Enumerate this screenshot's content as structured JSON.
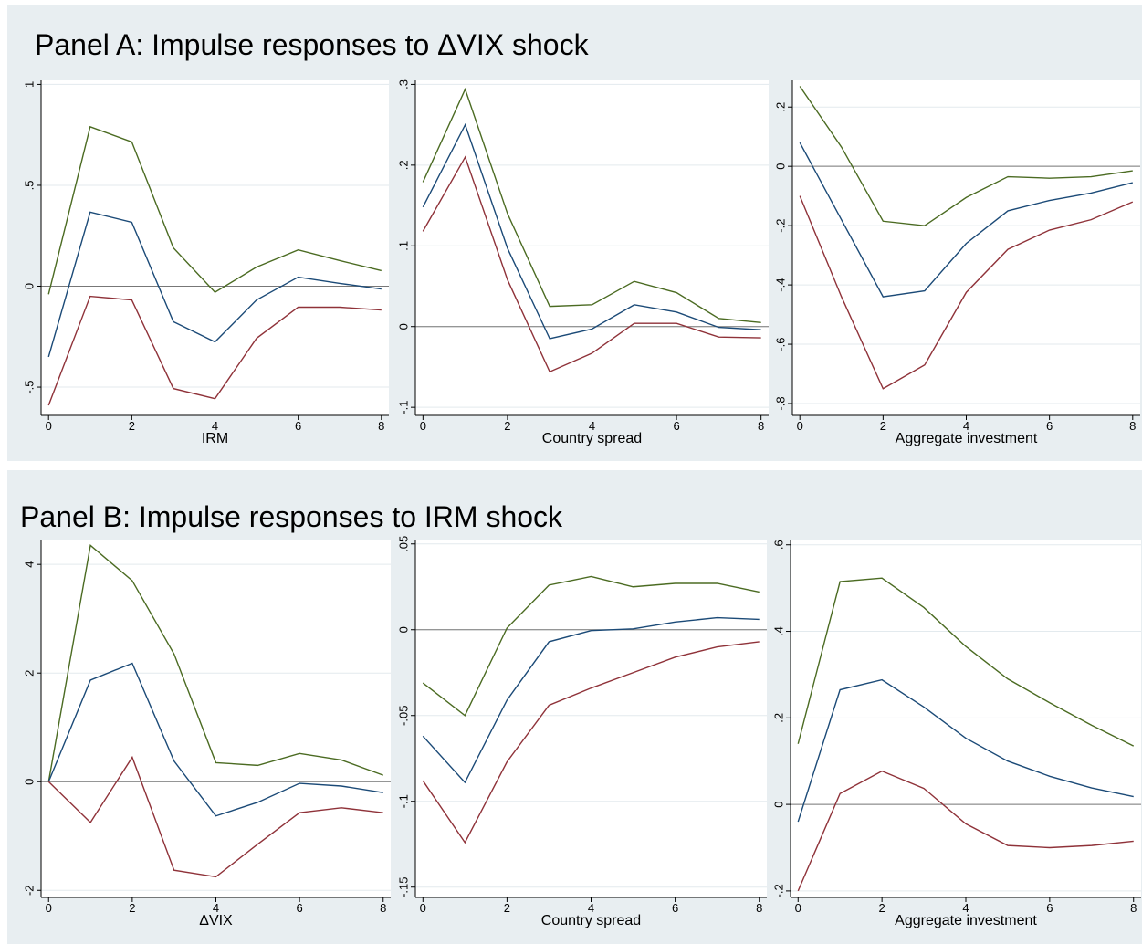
{
  "panels": [
    {
      "title": "Panel A: Impulse responses to ΔVIX shock",
      "chart_data": [
        {
          "type": "line",
          "xlabel": "IRM",
          "x": [
            0,
            1,
            2,
            3,
            4,
            5,
            6,
            7,
            8
          ],
          "xlim": [
            -0.18,
            8.18
          ],
          "xticks": [
            0,
            2,
            4,
            6,
            8
          ],
          "ylim": [
            -0.64,
            1.02
          ],
          "yticks": [
            {
              "value": -0.5,
              "label": "-.5"
            },
            0,
            {
              "value": 0.5,
              "label": ".5"
            },
            1
          ],
          "grid": true,
          "yline": 0,
          "series": [
            {
              "color": "#4b6b22",
              "values": [
                -0.04,
                0.79,
                0.715,
                0.19,
                -0.03,
                0.095,
                0.18,
                0.127,
                0.077
              ]
            },
            {
              "color": "#1b4a77",
              "values": [
                -0.35,
                0.367,
                0.317,
                -0.176,
                -0.276,
                -0.068,
                0.045,
                0.014,
                -0.014
              ]
            },
            {
              "color": "#8f3239",
              "values": [
                -0.59,
                -0.05,
                -0.068,
                -0.507,
                -0.557,
                -0.258,
                -0.104,
                -0.104,
                -0.118
              ]
            }
          ]
        },
        {
          "type": "line",
          "xlabel": "Country spread",
          "x": [
            0,
            1,
            2,
            3,
            4,
            5,
            6,
            7,
            8
          ],
          "xlim": [
            -0.18,
            8.18
          ],
          "xticks": [
            0,
            2,
            4,
            6,
            8
          ],
          "ylim": [
            -0.11,
            0.305
          ],
          "yticks": [
            {
              "value": -0.1,
              "label": "-.1"
            },
            0,
            {
              "value": 0.1,
              "label": ".1"
            },
            {
              "value": 0.2,
              "label": ".2"
            },
            {
              "value": 0.3,
              "label": ".3"
            }
          ],
          "grid": true,
          "yline": 0,
          "series": [
            {
              "color": "#4b6b22",
              "values": [
                0.179,
                0.294,
                0.14,
                0.025,
                0.027,
                0.056,
                0.042,
                0.01,
                0.005
              ]
            },
            {
              "color": "#1b4a77",
              "values": [
                0.148,
                0.25,
                0.097,
                -0.015,
                -0.003,
                0.027,
                0.018,
                -0.001,
                -0.004
              ]
            },
            {
              "color": "#8f3239",
              "values": [
                0.118,
                0.21,
                0.058,
                -0.056,
                -0.033,
                0.004,
                0.004,
                -0.013,
                -0.014
              ]
            }
          ]
        },
        {
          "type": "line",
          "xlabel": "Aggregate investment",
          "x": [
            0,
            1,
            2,
            3,
            4,
            5,
            6,
            7,
            8
          ],
          "xlim": [
            -0.18,
            8.18
          ],
          "xticks": [
            0,
            2,
            4,
            6,
            8
          ],
          "ylim": [
            -0.84,
            0.29
          ],
          "yticks": [
            {
              "value": -0.8,
              "label": "-.8"
            },
            {
              "value": -0.6,
              "label": "-.6"
            },
            {
              "value": -0.4,
              "label": "-.4"
            },
            {
              "value": -0.2,
              "label": "-.2"
            },
            0,
            {
              "value": 0.2,
              "label": ".2"
            }
          ],
          "grid": true,
          "yline": 0,
          "series": [
            {
              "color": "#4b6b22",
              "values": [
                0.27,
                0.065,
                -0.185,
                -0.2,
                -0.105,
                -0.035,
                -0.04,
                -0.035,
                -0.015
              ]
            },
            {
              "color": "#1b4a77",
              "values": [
                0.08,
                -0.18,
                -0.44,
                -0.42,
                -0.26,
                -0.15,
                -0.115,
                -0.09,
                -0.055
              ]
            },
            {
              "color": "#8f3239",
              "values": [
                -0.1,
                -0.44,
                -0.75,
                -0.67,
                -0.425,
                -0.28,
                -0.215,
                -0.18,
                -0.12
              ]
            }
          ]
        }
      ]
    },
    {
      "title": "Panel B: Impulse responses to IRM shock",
      "chart_data": [
        {
          "type": "line",
          "xlabel": "ΔVIX",
          "x": [
            0,
            1,
            2,
            3,
            4,
            5,
            6,
            7,
            8
          ],
          "xlim": [
            -0.18,
            8.18
          ],
          "xticks": [
            0,
            2,
            4,
            6,
            8
          ],
          "ylim": [
            -2.13,
            4.44
          ],
          "yticks": [
            -2,
            0,
            2,
            4
          ],
          "grid": true,
          "yline": 0,
          "series": [
            {
              "color": "#4b6b22",
              "values": [
                0,
                4.35,
                3.7,
                2.35,
                0.35,
                0.3,
                0.52,
                0.4,
                0.12
              ]
            },
            {
              "color": "#1b4a77",
              "values": [
                0,
                1.87,
                2.18,
                0.38,
                -0.63,
                -0.38,
                -0.03,
                -0.08,
                -0.2
              ]
            },
            {
              "color": "#8f3239",
              "values": [
                0,
                -0.75,
                0.45,
                -1.63,
                -1.75,
                -1.15,
                -0.57,
                -0.48,
                -0.57
              ]
            }
          ]
        },
        {
          "type": "line",
          "xlabel": "Country spread",
          "x": [
            0,
            1,
            2,
            3,
            4,
            5,
            6,
            7,
            8
          ],
          "xlim": [
            -0.18,
            8.18
          ],
          "xticks": [
            0,
            2,
            4,
            6,
            8
          ],
          "ylim": [
            -0.156,
            0.052
          ],
          "yticks": [
            {
              "value": -0.15,
              "label": "-.15"
            },
            {
              "value": -0.1,
              "label": "-.1"
            },
            {
              "value": -0.05,
              "label": "-.05"
            },
            0,
            {
              "value": 0.05,
              "label": ".05"
            }
          ],
          "grid": true,
          "yline": 0,
          "series": [
            {
              "color": "#4b6b22",
              "values": [
                -0.031,
                -0.05,
                0.001,
                0.026,
                0.031,
                0.025,
                0.027,
                0.027,
                0.022
              ]
            },
            {
              "color": "#1b4a77",
              "values": [
                -0.062,
                -0.089,
                -0.041,
                -0.007,
                -0.0005,
                0.0005,
                0.0045,
                0.007,
                0.006
              ]
            },
            {
              "color": "#8f3239",
              "values": [
                -0.088,
                -0.124,
                -0.077,
                -0.044,
                -0.034,
                -0.025,
                -0.016,
                -0.01,
                -0.007
              ]
            }
          ]
        },
        {
          "type": "line",
          "xlabel": "Aggregate investment",
          "x": [
            0,
            1,
            2,
            3,
            4,
            5,
            6,
            7,
            8
          ],
          "xlim": [
            -0.18,
            8.18
          ],
          "xticks": [
            0,
            2,
            4,
            6,
            8
          ],
          "ylim": [
            -0.215,
            0.61
          ],
          "yticks": [
            {
              "value": -0.2,
              "label": "-.2"
            },
            0,
            {
              "value": 0.2,
              "label": ".2"
            },
            {
              "value": 0.4,
              "label": ".4"
            },
            {
              "value": 0.6,
              "label": ".6"
            }
          ],
          "grid": true,
          "yline": 0,
          "series": [
            {
              "color": "#4b6b22",
              "values": [
                0.14,
                0.515,
                0.523,
                0.455,
                0.365,
                0.29,
                0.235,
                0.183,
                0.135
              ]
            },
            {
              "color": "#1b4a77",
              "values": [
                -0.04,
                0.265,
                0.288,
                0.225,
                0.153,
                0.1,
                0.065,
                0.038,
                0.018
              ]
            },
            {
              "color": "#8f3239",
              "values": [
                -0.2,
                0.025,
                0.077,
                0.037,
                -0.045,
                -0.095,
                -0.1,
                -0.095,
                -0.085
              ]
            }
          ]
        }
      ]
    }
  ]
}
